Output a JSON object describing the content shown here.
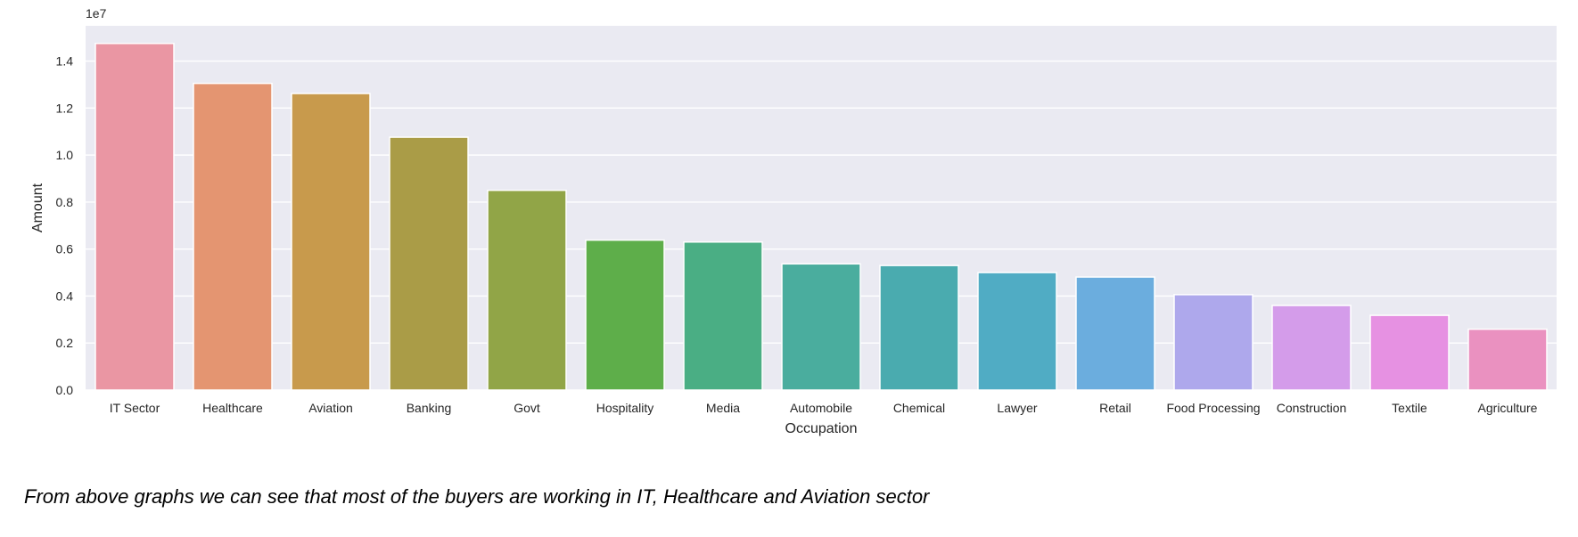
{
  "chart_data": {
    "type": "bar",
    "xlabel": "Occupation",
    "ylabel": "Amount",
    "offset_text": "1e7",
    "scale": 10000000,
    "ylim": [
      0,
      15500000
    ],
    "yticks": [
      0,
      2000000,
      4000000,
      6000000,
      8000000,
      10000000,
      12000000,
      14000000
    ],
    "ytick_labels": [
      "0.0",
      "0.2",
      "0.4",
      "0.6",
      "0.8",
      "1.0",
      "1.2",
      "1.4"
    ],
    "grid": true,
    "categories": [
      "IT Sector",
      "Healthcare",
      "Aviation",
      "Banking",
      "Govt",
      "Hospitality",
      "Media",
      "Automobile",
      "Chemical",
      "Lawyer",
      "Retail",
      "Food Processing",
      "Construction",
      "Textile",
      "Agriculture"
    ],
    "values": [
      14750000,
      13050000,
      12620000,
      10760000,
      8500000,
      6380000,
      6300000,
      5370000,
      5300000,
      5000000,
      4810000,
      4060000,
      3600000,
      3180000,
      2590000
    ],
    "colors": [
      "#ea96a3",
      "#e49571",
      "#c89a4c",
      "#aa9c47",
      "#91a547",
      "#5eae4a",
      "#4aae84",
      "#4aad9e",
      "#4aabaf",
      "#50acc4",
      "#6badde",
      "#aea8ec",
      "#d49cea",
      "#e691e2",
      "#ea91c0"
    ]
  },
  "note": "From above graphs we can see that most of the buyers are working in IT, Healthcare and Aviation sector"
}
